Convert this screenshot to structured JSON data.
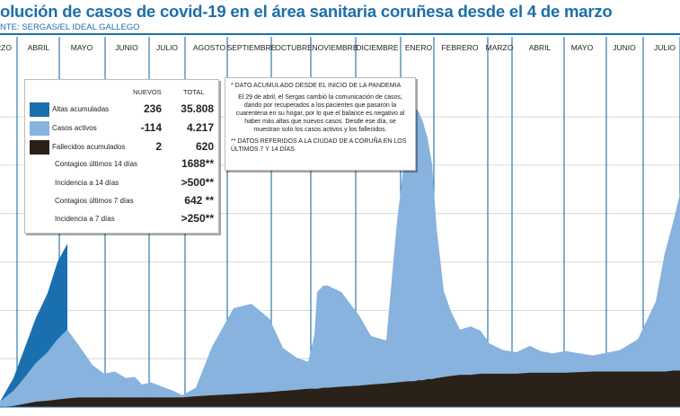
{
  "title": "olución de casos de covid-19 en el área sanitaria coruñesa desde el 4 de marzo",
  "source": "NTE: SERGAS/EL IDEAL GALLEGO",
  "chart_data": {
    "type": "area",
    "months": [
      "RZO",
      "ABRIL",
      "MAYO",
      "JUNIO",
      "JULIO",
      "AGOSTO",
      "SEPTIEMBRE",
      "OCTUBRE",
      "NOVIEMBRE",
      "DICIEMBRE",
      "ENERO",
      "FEBRERO",
      "MARZO",
      "ABRIL",
      "MAYO",
      "JUNIO",
      "JULIO"
    ],
    "x": [
      0,
      15,
      28,
      40,
      53,
      64,
      75,
      88,
      103,
      116,
      128,
      140,
      150,
      158,
      168,
      180,
      193,
      203,
      218,
      236,
      260,
      280,
      300,
      315,
      330,
      343,
      350,
      353,
      360,
      365,
      380,
      400,
      413,
      430,
      442,
      455,
      458,
      461,
      466,
      471,
      476,
      481,
      486,
      494,
      502,
      512,
      524,
      535,
      545,
      560,
      575,
      590,
      602,
      615,
      630,
      660,
      690,
      710,
      730,
      740,
      750,
      757
    ],
    "series": [
      {
        "name": "Altas acumuladas",
        "color": "#1a6fae",
        "values": [
          0,
          12,
          28,
          42,
          55,
          72,
          80,
          0,
          0,
          0,
          0,
          0,
          0,
          0,
          0,
          0,
          0,
          0,
          0,
          0,
          0,
          0,
          0,
          0,
          0,
          0,
          0,
          0,
          0,
          0,
          0,
          0,
          0,
          0,
          0,
          0,
          0,
          0,
          0,
          0,
          0,
          0,
          0,
          0,
          0,
          0,
          0,
          0,
          0,
          0,
          0,
          0,
          0,
          0,
          0,
          0,
          0,
          0,
          0,
          0,
          0,
          0
        ]
      },
      {
        "name": "Casos activos",
        "color": "#87b3de",
        "values": [
          5,
          14,
          25,
          36,
          45,
          56,
          64,
          48,
          30,
          22,
          24,
          18,
          19,
          12,
          14,
          10,
          6,
          2,
          8,
          45,
          80,
          83,
          68,
          40,
          30,
          25,
          50,
          90,
          95,
          95,
          88,
          65,
          45,
          40,
          150,
          240,
          255,
          255,
          250,
          240,
          224,
          200,
          140,
          80,
          60,
          42,
          45,
          40,
          28,
          22,
          20,
          25,
          20,
          18,
          20,
          15,
          20,
          30,
          65,
          110,
          140,
          165
        ]
      },
      {
        "name": "Fallecidos acumulados",
        "color": "#2a2119",
        "values": [
          0,
          1,
          3,
          5,
          6,
          7,
          8,
          9,
          9,
          9,
          9,
          9,
          9,
          9,
          9,
          9,
          9,
          9,
          10,
          11,
          12,
          13,
          14,
          15,
          16,
          17,
          17,
          17,
          18,
          18,
          19,
          20,
          21,
          22,
          23,
          24,
          24,
          24,
          25,
          25,
          26,
          26,
          27,
          28,
          29,
          30,
          30,
          31,
          31,
          31,
          31,
          32,
          32,
          32,
          32,
          33,
          33,
          33,
          33,
          33,
          34,
          34
        ]
      }
    ],
    "ymax": 300
  },
  "stats": {
    "hdr_nuevos": "NUEVOS",
    "hdr_total": "TOTAL",
    "rows": [
      {
        "label": "Altas acumuladas",
        "nuevos": "236",
        "total": "35.808",
        "color": "#1a6fae"
      },
      {
        "label": "Casos activos",
        "nuevos": "-114",
        "total": "4.217",
        "color": "#87b3de"
      },
      {
        "label": "Fallecidos acumulados",
        "nuevos": "2",
        "total": "620",
        "color": "#2a2119"
      }
    ],
    "incid": [
      {
        "label": "Contagios últimos 14 días",
        "value": "1688**"
      },
      {
        "label": "Incidencia a 14 días",
        "value": ">500**"
      },
      {
        "label": "Contagios últimos 7 días",
        "value": "642 **"
      },
      {
        "label": "Incidencia a 7 días",
        "value": ">250**"
      }
    ]
  },
  "note": {
    "p1": "* DATO ACUMULADO DESDE EL INICIO DE LA PANDEMIA",
    "p2": "El 29 de abril, el Sergas cambió la comunicación de casos, dando por recuperados a los pacientes que pasaron la cuarentena en su hogar, por lo que el balance es negativo al haber más altas que nuevos casos. Desde ese día, se muestran solo los casos activos y los fallecidos.",
    "p3": "** DATOS REFERIDOS A LA CIUDAD DE A CORUÑA EN LOS ÚLTIMOS 7 Y 14 DÍAS"
  }
}
